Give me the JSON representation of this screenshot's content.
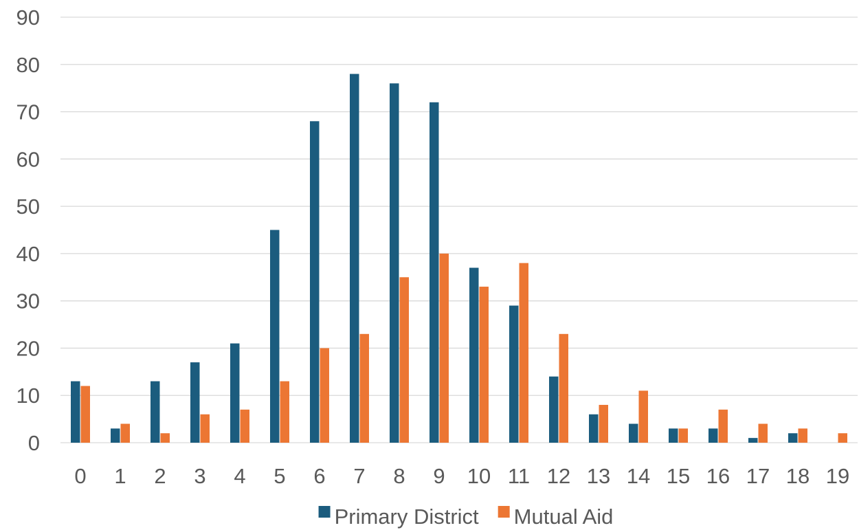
{
  "chart_data": {
    "type": "bar",
    "categories": [
      "0",
      "1",
      "2",
      "3",
      "4",
      "5",
      "6",
      "7",
      "8",
      "9",
      "10",
      "11",
      "12",
      "13",
      "14",
      "15",
      "16",
      "17",
      "18",
      "19"
    ],
    "series": [
      {
        "name": "Primary District",
        "color": "#1b5c7e",
        "values": [
          13,
          3,
          13,
          17,
          21,
          45,
          68,
          78,
          76,
          72,
          37,
          29,
          14,
          6,
          4,
          3,
          3,
          1,
          2,
          0
        ]
      },
      {
        "name": "Mutual Aid",
        "color": "#ec7633",
        "values": [
          12,
          4,
          2,
          6,
          7,
          13,
          20,
          23,
          35,
          40,
          33,
          38,
          23,
          8,
          11,
          3,
          7,
          4,
          3,
          2
        ]
      }
    ],
    "ylim": [
      0,
      90
    ],
    "yticks": [
      0,
      10,
      20,
      30,
      40,
      50,
      60,
      70,
      80,
      90
    ],
    "grid": true,
    "legend_position": "bottom"
  }
}
